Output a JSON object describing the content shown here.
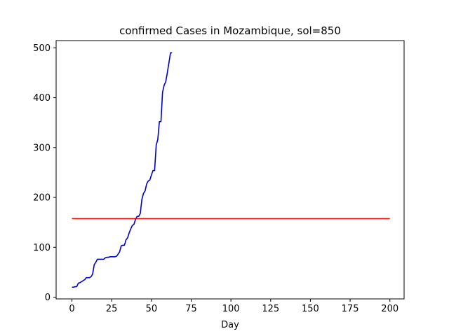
{
  "chart_data": {
    "type": "line",
    "title": "confirmed Cases in Mozambique, sol=850",
    "xlabel": "Day",
    "ylabel": "",
    "xlim": [
      -9.95,
      208.95
    ],
    "ylim": [
      -3.5,
      514.5
    ],
    "x_ticks": [
      0,
      25,
      50,
      75,
      100,
      125,
      150,
      175,
      200
    ],
    "y_ticks": [
      0,
      100,
      200,
      300,
      400,
      500
    ],
    "grid": false,
    "legend": "none",
    "series": [
      {
        "color": "#0000cd",
        "x": [
          0,
          1,
          2,
          3,
          4,
          5,
          6,
          7,
          8,
          9,
          10,
          11,
          12,
          13,
          14,
          15,
          16,
          17,
          18,
          19,
          20,
          21,
          22,
          23,
          24,
          25,
          26,
          27,
          28,
          29,
          30,
          31,
          32,
          33,
          34,
          35,
          36,
          37,
          38,
          39,
          40,
          41,
          42,
          43,
          44,
          45,
          46,
          47,
          48,
          49,
          50,
          51,
          52,
          53,
          54,
          55,
          56,
          57,
          58,
          59,
          60,
          61,
          62,
          63
        ],
        "y": [
          20,
          20,
          21,
          21,
          28,
          29,
          31,
          33,
          35,
          39,
          39,
          39,
          41,
          46,
          65,
          70,
          76,
          76,
          76,
          76,
          76,
          79,
          80,
          80,
          81,
          81,
          81,
          81,
          82,
          86,
          91,
          103,
          104,
          104,
          115,
          119,
          129,
          137,
          144,
          146,
          156,
          162,
          162,
          168,
          196,
          208,
          213,
          227,
          233,
          235,
          245,
          254,
          254,
          305,
          316,
          352,
          352,
          411,
          425,
          432,
          450,
          470,
          490,
          490
        ]
      },
      {
        "color": "#ff0000",
        "x": [
          0,
          200
        ],
        "y": [
          157.5,
          157.5
        ]
      }
    ]
  }
}
